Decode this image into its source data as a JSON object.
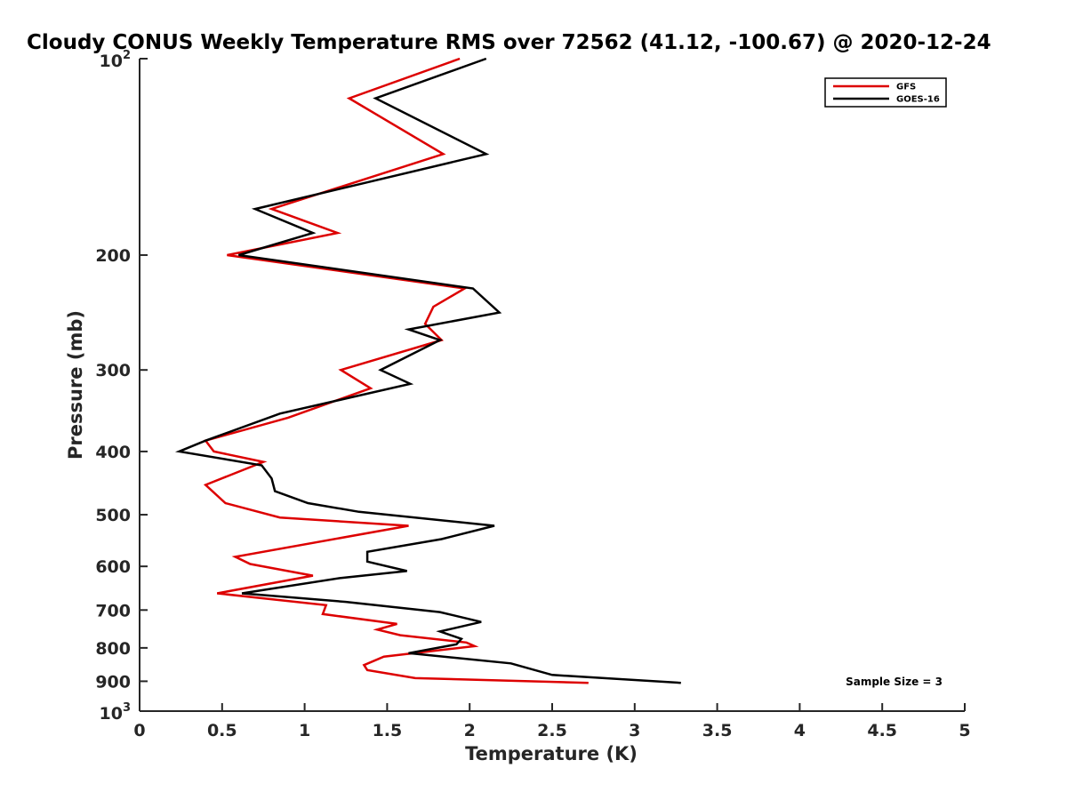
{
  "chart_data": {
    "type": "line",
    "title": "Cloudy CONUS Weekly Temperature RMS over 72562 (41.12, -100.67) @ 2020-12-24",
    "xlabel": "Temperature (K)",
    "ylabel": "Pressure (mb)",
    "xlim": [
      0,
      5
    ],
    "ylim": [
      100,
      1000
    ],
    "yscale": "log",
    "y_reversed": true,
    "grid": false,
    "legend_position": "top-right",
    "x_ticks": [
      {
        "value": 0,
        "label": "0"
      },
      {
        "value": 0.5,
        "label": "0.5"
      },
      {
        "value": 1,
        "label": "1"
      },
      {
        "value": 1.5,
        "label": "1.5"
      },
      {
        "value": 2,
        "label": "2"
      },
      {
        "value": 2.5,
        "label": "2.5"
      },
      {
        "value": 3,
        "label": "3"
      },
      {
        "value": 3.5,
        "label": "3.5"
      },
      {
        "value": 4,
        "label": "4"
      },
      {
        "value": 4.5,
        "label": "4.5"
      },
      {
        "value": 5,
        "label": "5"
      }
    ],
    "y_ticks": [
      {
        "value": 200,
        "label": "200"
      },
      {
        "value": 300,
        "label": "300"
      },
      {
        "value": 400,
        "label": "400"
      },
      {
        "value": 500,
        "label": "500"
      },
      {
        "value": 600,
        "label": "600"
      },
      {
        "value": 700,
        "label": "700"
      },
      {
        "value": 800,
        "label": "800"
      },
      {
        "value": 900,
        "label": "900"
      }
    ],
    "y_ticks_power": [
      {
        "value": 100,
        "base": "10",
        "exponent": "2"
      },
      {
        "value": 1000,
        "base": "10",
        "exponent": "3"
      }
    ],
    "annotation": "Sample Size = 3",
    "series": [
      {
        "name": "GFS",
        "color": "#dd0000",
        "points": [
          [
            1.94,
            100
          ],
          [
            1.27,
            115
          ],
          [
            1.84,
            140
          ],
          [
            0.8,
            170
          ],
          [
            1.2,
            185
          ],
          [
            0.53,
            200
          ],
          [
            1.97,
            225
          ],
          [
            1.78,
            240
          ],
          [
            1.73,
            255
          ],
          [
            1.83,
            270
          ],
          [
            1.22,
            300
          ],
          [
            1.4,
            320
          ],
          [
            0.9,
            355
          ],
          [
            0.4,
            385
          ],
          [
            0.45,
            400
          ],
          [
            0.75,
            415
          ],
          [
            0.4,
            450
          ],
          [
            0.52,
            480
          ],
          [
            0.85,
            505
          ],
          [
            1.63,
            520
          ],
          [
            0.58,
            580
          ],
          [
            0.67,
            595
          ],
          [
            1.05,
            620
          ],
          [
            0.47,
            660
          ],
          [
            1.13,
            688
          ],
          [
            1.11,
            710
          ],
          [
            1.56,
            735
          ],
          [
            1.44,
            750
          ],
          [
            1.58,
            765
          ],
          [
            1.98,
            785
          ],
          [
            2.03,
            795
          ],
          [
            1.48,
            825
          ],
          [
            1.36,
            850
          ],
          [
            1.38,
            865
          ],
          [
            1.67,
            890
          ],
          [
            2.72,
            905
          ]
        ]
      },
      {
        "name": "GOES-16",
        "color": "#000000",
        "points": [
          [
            2.1,
            100
          ],
          [
            1.43,
            115
          ],
          [
            2.1,
            140
          ],
          [
            0.7,
            170
          ],
          [
            1.05,
            185
          ],
          [
            0.6,
            200
          ],
          [
            2.02,
            225
          ],
          [
            2.18,
            245
          ],
          [
            1.63,
            260
          ],
          [
            1.82,
            270
          ],
          [
            1.46,
            300
          ],
          [
            1.64,
            315
          ],
          [
            0.85,
            350
          ],
          [
            0.4,
            385
          ],
          [
            0.24,
            400
          ],
          [
            0.74,
            420
          ],
          [
            0.8,
            440
          ],
          [
            0.82,
            460
          ],
          [
            1.02,
            480
          ],
          [
            1.33,
            495
          ],
          [
            2.15,
            520
          ],
          [
            1.83,
            545
          ],
          [
            1.38,
            570
          ],
          [
            1.38,
            590
          ],
          [
            1.62,
            610
          ],
          [
            1.22,
            625
          ],
          [
            0.62,
            660
          ],
          [
            1.25,
            680
          ],
          [
            1.82,
            705
          ],
          [
            2.07,
            730
          ],
          [
            1.82,
            755
          ],
          [
            1.95,
            775
          ],
          [
            1.92,
            790
          ],
          [
            1.63,
            815
          ],
          [
            2.25,
            845
          ],
          [
            2.5,
            880
          ],
          [
            3.28,
            905
          ]
        ]
      }
    ]
  }
}
